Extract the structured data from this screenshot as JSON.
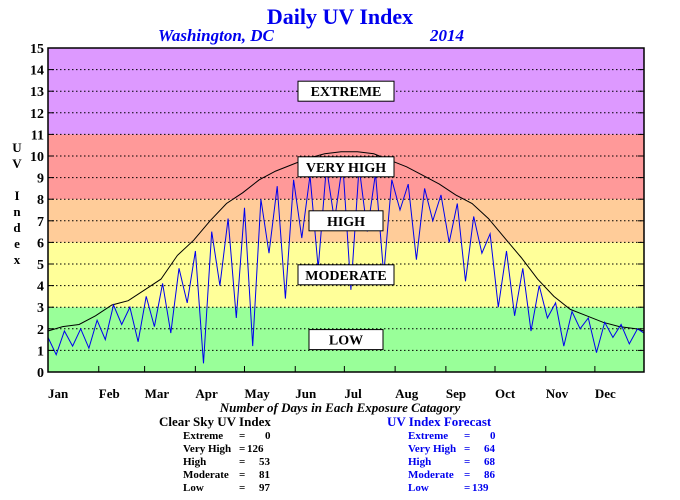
{
  "header": {
    "title": "Daily UV Index",
    "location": "Washington, DC",
    "year": "2014"
  },
  "y_axis_label": [
    "U",
    "V",
    "",
    "I",
    "n",
    "d",
    "e",
    "x"
  ],
  "x_caption": "Number of Days in Each Exposure Catagory",
  "clear_sky": {
    "heading": "Clear Sky UV Index",
    "rows": [
      {
        "label": "Extreme",
        "value": "0"
      },
      {
        "label": "Very High",
        "value": "126"
      },
      {
        "label": "High",
        "value": "53"
      },
      {
        "label": "Moderate",
        "value": "81"
      },
      {
        "label": "Low",
        "value": "97"
      }
    ]
  },
  "forecast": {
    "heading": "UV Index Forecast",
    "rows": [
      {
        "label": "Extreme",
        "value": "0"
      },
      {
        "label": "Very High",
        "value": "64"
      },
      {
        "label": "High",
        "value": "68"
      },
      {
        "label": "Moderate",
        "value": "86"
      },
      {
        "label": "Low",
        "value": "139"
      }
    ]
  },
  "chart_data": {
    "type": "line",
    "title": "Daily UV Index",
    "ylabel": "UV Index",
    "ylim": [
      0,
      15
    ],
    "yticks": [
      0,
      1,
      2,
      3,
      4,
      5,
      6,
      7,
      8,
      9,
      10,
      11,
      12,
      13,
      14,
      15
    ],
    "xlim": [
      1,
      365
    ],
    "month_labels": [
      "Jan",
      "Feb",
      "Mar",
      "Apr",
      "May",
      "Jun",
      "Jul",
      "Aug",
      "Sep",
      "Oct",
      "Nov",
      "Dec"
    ],
    "month_start_days": [
      1,
      32,
      60,
      91,
      121,
      152,
      182,
      213,
      244,
      274,
      305,
      335
    ],
    "grid": true,
    "bands": [
      {
        "label": "LOW",
        "from": 0,
        "to": 3,
        "color": "#99ff99"
      },
      {
        "label": "MODERATE",
        "from": 3,
        "to": 6,
        "color": "#ffff99"
      },
      {
        "label": "HIGH",
        "from": 6,
        "to": 8,
        "color": "#ffcc99"
      },
      {
        "label": "VERY HIGH",
        "from": 8,
        "to": 11,
        "color": "#ff9999"
      },
      {
        "label": "EXTREME",
        "from": 11,
        "to": 15,
        "color": "#dd99ff"
      }
    ],
    "series": [
      {
        "name": "Clear Sky UV Index",
        "color": "#000000",
        "x": [
          1,
          10,
          20,
          30,
          40,
          50,
          60,
          70,
          80,
          90,
          100,
          110,
          120,
          130,
          140,
          150,
          160,
          170,
          180,
          190,
          200,
          210,
          220,
          230,
          240,
          250,
          260,
          270,
          280,
          290,
          300,
          310,
          320,
          330,
          340,
          350,
          360,
          365
        ],
        "values": [
          1.9,
          2.1,
          2.2,
          2.6,
          3.1,
          3.3,
          3.8,
          4.3,
          5.4,
          6.1,
          7.0,
          7.8,
          8.3,
          8.9,
          9.3,
          9.6,
          9.9,
          10.1,
          10.2,
          10.2,
          10.1,
          9.8,
          9.5,
          9.1,
          8.7,
          8.2,
          7.8,
          7.1,
          6.2,
          5.3,
          4.3,
          3.5,
          2.9,
          2.6,
          2.3,
          2.1,
          2.0,
          1.9
        ]
      },
      {
        "name": "UV Index Forecast",
        "color": "#0000ee",
        "x": [
          1,
          6,
          11,
          16,
          21,
          26,
          31,
          36,
          41,
          46,
          51,
          56,
          61,
          66,
          71,
          76,
          81,
          86,
          91,
          96,
          101,
          106,
          111,
          116,
          121,
          126,
          131,
          136,
          141,
          146,
          151,
          156,
          161,
          166,
          171,
          176,
          181,
          186,
          191,
          196,
          201,
          206,
          211,
          216,
          221,
          226,
          231,
          236,
          241,
          246,
          251,
          256,
          261,
          266,
          271,
          276,
          281,
          286,
          291,
          296,
          301,
          306,
          311,
          316,
          321,
          326,
          331,
          336,
          341,
          346,
          351,
          356,
          361,
          365
        ],
        "values": [
          1.6,
          0.8,
          1.9,
          1.2,
          2.0,
          1.1,
          2.4,
          1.5,
          3.1,
          2.2,
          3.0,
          1.4,
          3.5,
          2.1,
          4.1,
          1.8,
          4.8,
          3.2,
          5.6,
          0.4,
          6.5,
          4.0,
          7.1,
          2.5,
          7.6,
          1.2,
          8.0,
          5.5,
          8.6,
          3.4,
          8.9,
          6.2,
          9.1,
          4.8,
          9.5,
          7.0,
          9.7,
          3.8,
          9.5,
          6.5,
          9.2,
          4.5,
          8.9,
          7.5,
          8.7,
          5.2,
          8.5,
          7.0,
          8.2,
          6.0,
          7.8,
          4.2,
          7.2,
          5.5,
          6.4,
          3.0,
          5.6,
          2.6,
          4.8,
          1.9,
          4.0,
          2.5,
          3.2,
          1.2,
          2.8,
          2.0,
          2.5,
          0.9,
          2.3,
          1.6,
          2.2,
          1.3,
          2.0,
          1.8
        ]
      }
    ]
  }
}
